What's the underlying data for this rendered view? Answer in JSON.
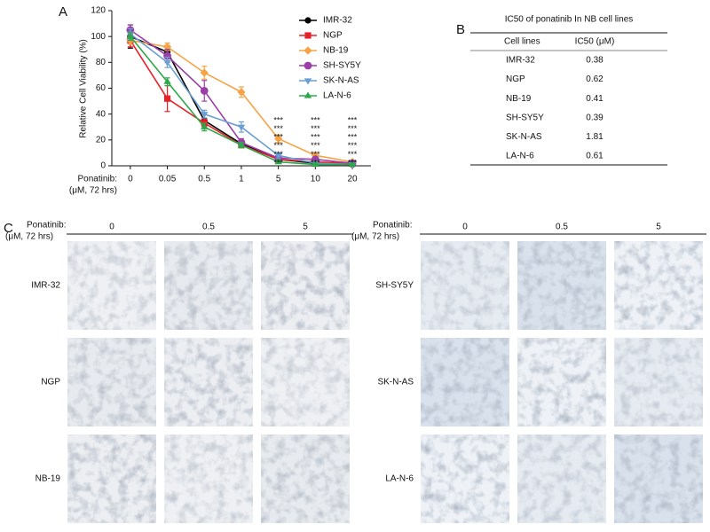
{
  "chart_data": {
    "type": "line",
    "y_label": "Relative Cell Viability (%)",
    "x_label": [
      "Ponatinib:",
      "(μM, 72 hrs)"
    ],
    "categories": [
      "0",
      "0.05",
      "0.5",
      "1",
      "5",
      "10",
      "20"
    ],
    "ylim": [
      0,
      120
    ],
    "yticks": [
      0,
      20,
      40,
      60,
      80,
      100,
      120
    ],
    "series": [
      {
        "name": "IMR-32",
        "color": "#000000",
        "marker": "circle",
        "values": [
          100,
          88,
          35,
          17,
          5,
          2,
          1
        ],
        "errors": [
          9,
          5,
          2,
          1,
          1,
          1,
          1
        ]
      },
      {
        "name": "NGP",
        "color": "#e8202a",
        "marker": "square",
        "values": [
          97,
          52,
          33,
          16,
          5,
          3,
          2
        ],
        "errors": [
          5,
          10,
          3,
          2,
          1,
          1,
          1
        ]
      },
      {
        "name": "NB-19",
        "color": "#f7a345",
        "marker": "diamond",
        "values": [
          97,
          92,
          72,
          57,
          21,
          8,
          3
        ],
        "errors": [
          3,
          3,
          5,
          4,
          3,
          2,
          1
        ]
      },
      {
        "name": "SH-SY5Y",
        "color": "#9b3fa8",
        "marker": "circle",
        "values": [
          105,
          85,
          58,
          18,
          6,
          5,
          2
        ],
        "errors": [
          4,
          5,
          8,
          3,
          1,
          1,
          1
        ]
      },
      {
        "name": "SK-N-AS",
        "color": "#6a9fd4",
        "marker": "triangle-down",
        "values": [
          102,
          80,
          40,
          30,
          8,
          2,
          1
        ],
        "errors": [
          4,
          4,
          3,
          4,
          2,
          1,
          1
        ]
      },
      {
        "name": "LA-N-6",
        "color": "#2ca84a",
        "marker": "triangle-up",
        "values": [
          100,
          65,
          30,
          16,
          3,
          1,
          1
        ],
        "errors": [
          3,
          3,
          3,
          2,
          1,
          1,
          1
        ]
      }
    ],
    "significance": [
      null,
      null,
      null,
      null,
      [
        "***",
        "***",
        "***",
        "***",
        "***",
        "***"
      ],
      [
        "***",
        "***",
        "***",
        "***",
        "***",
        "***"
      ],
      [
        "***",
        "***",
        "***",
        "***",
        "***",
        "***"
      ]
    ]
  },
  "panel_labels": [
    "A",
    "B",
    "C"
  ],
  "table": {
    "title": "IC50 of ponatinib In NB cell lines",
    "header": [
      "Cell lines",
      "IC50 (μM)"
    ],
    "rows": [
      [
        "IMR-32",
        "0.38"
      ],
      [
        "NGP",
        "0.62"
      ],
      [
        "NB-19",
        "0.41"
      ],
      [
        "SH-SY5Y",
        "0.39"
      ],
      [
        "SK-N-AS",
        "1.81"
      ],
      [
        "LA-N-6",
        "0.61"
      ]
    ]
  },
  "images": {
    "treatment": [
      "Ponatinib:",
      "(μM, 72 hrs)"
    ],
    "doses": [
      "0",
      "0.5",
      "5"
    ],
    "groups": [
      {
        "cell_lines": [
          "IMR-32",
          "NGP",
          "NB-19"
        ]
      },
      {
        "cell_lines": [
          "SH-SY5Y",
          "SK-N-AS",
          "LA-N-6"
        ]
      }
    ]
  }
}
